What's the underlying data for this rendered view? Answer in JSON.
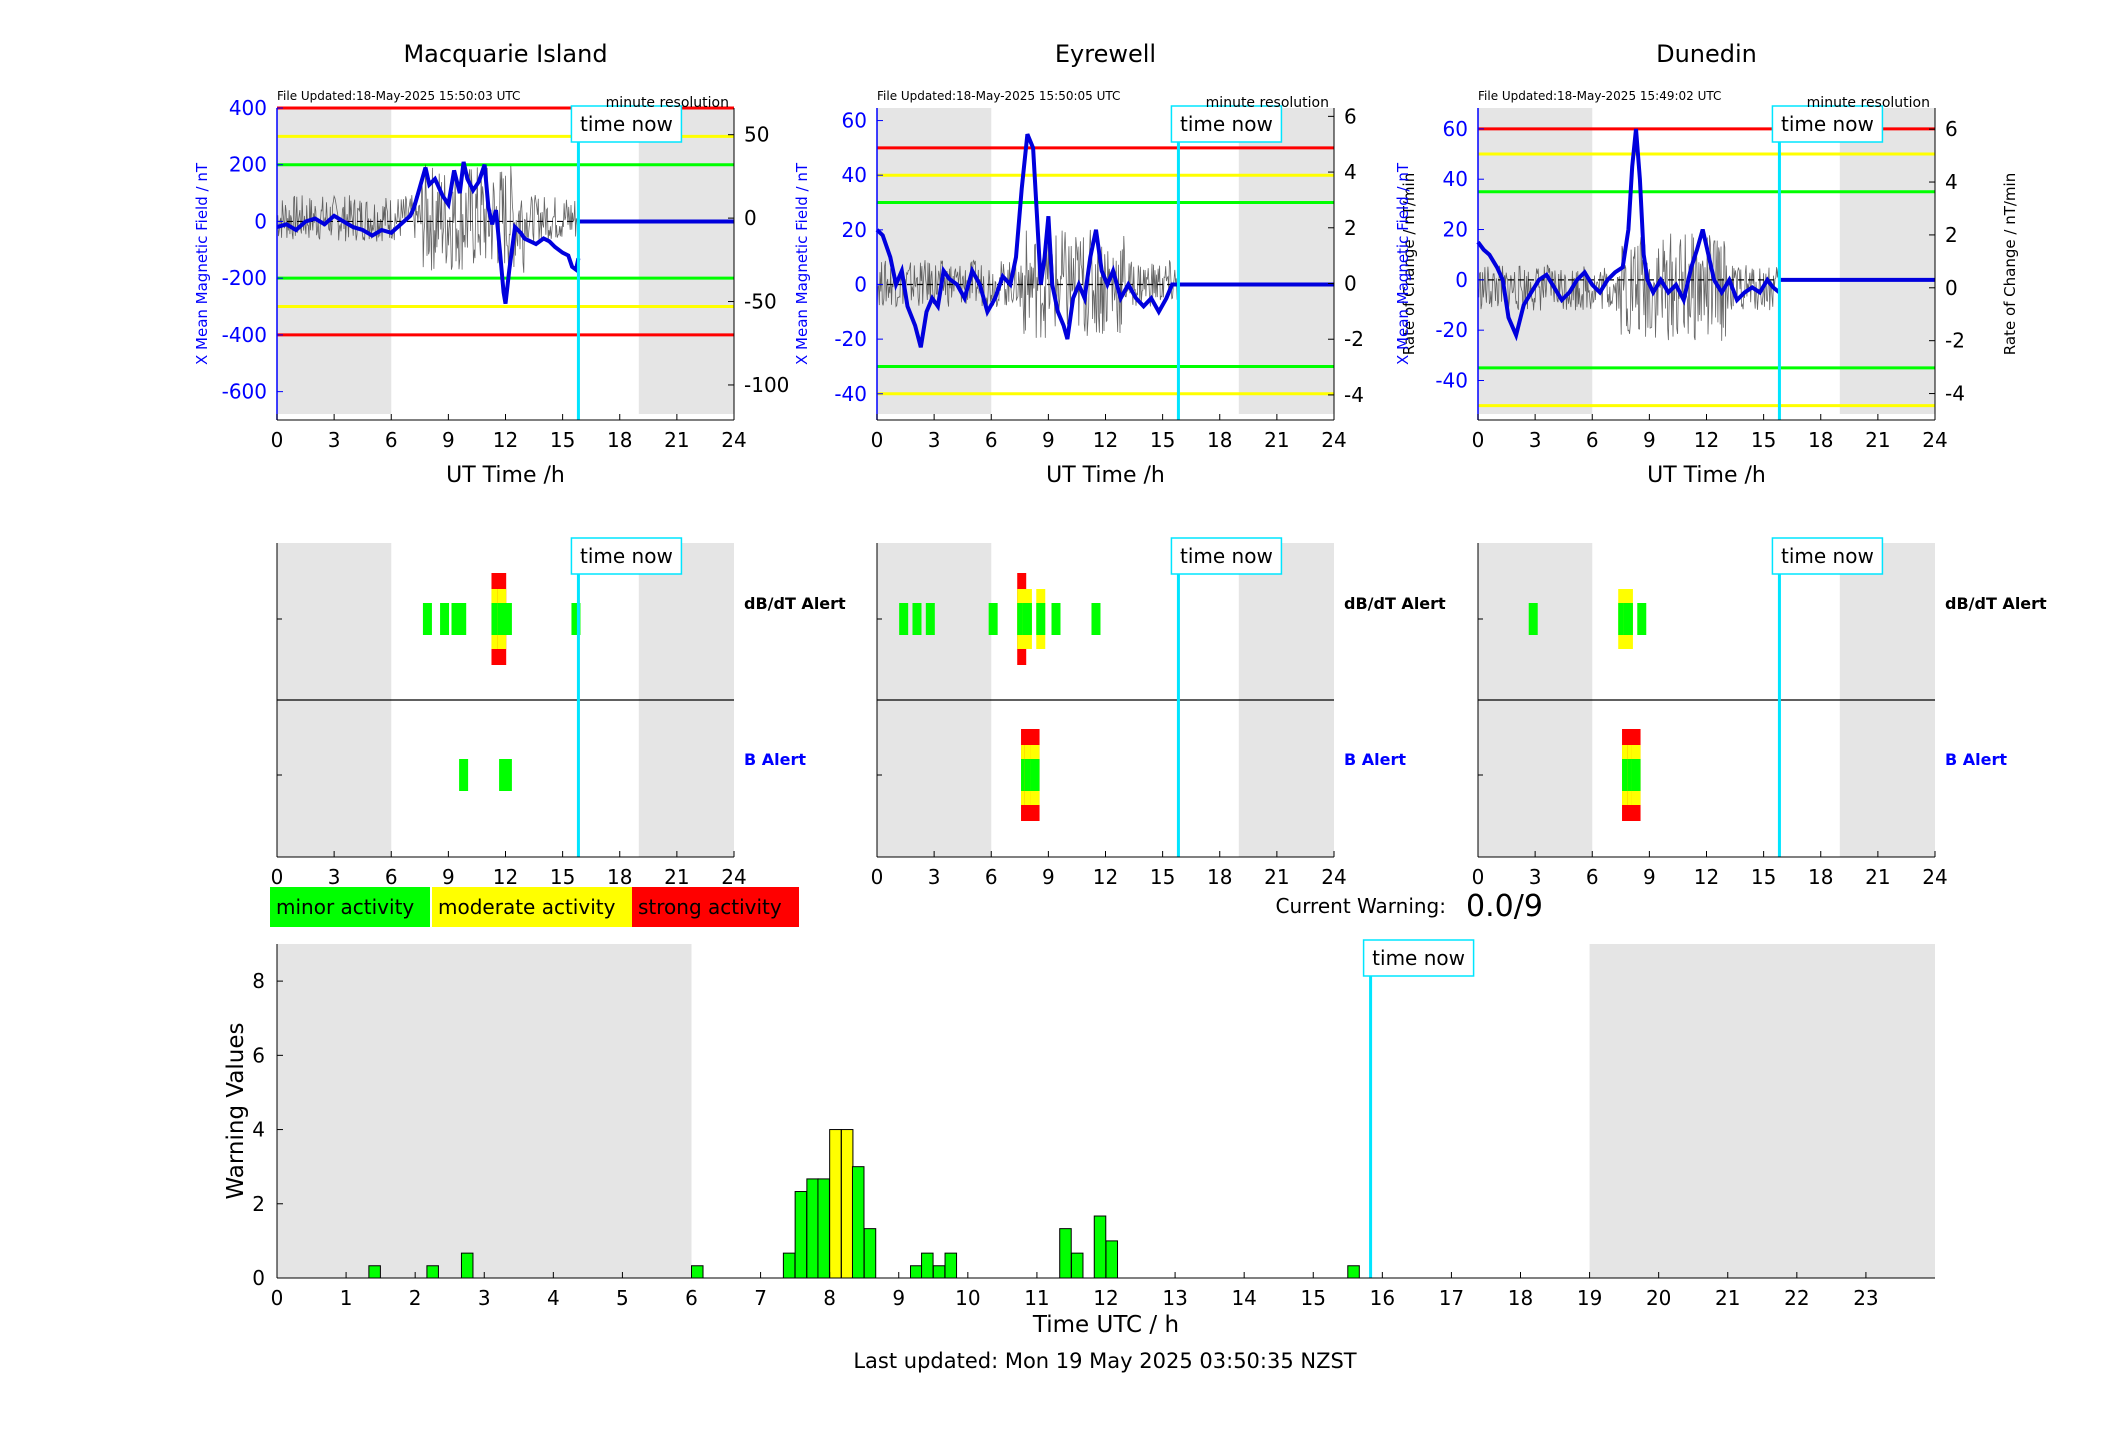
{
  "colors": {
    "background_band": "#e5e5e5",
    "minor": "#00ff00",
    "moderate": "#ffff00",
    "strong": "#ff0000",
    "time_now": "#00e5ff",
    "field_line": "#0000dd",
    "rate_line": "#333333",
    "left_axis": "#0000ff"
  },
  "labels": {
    "time_now": "time now",
    "minute_resolution": "minute resolution",
    "x_axis_top": "UT Time /h",
    "y_left_top": "X Mean Magnetic Field / nT",
    "y_right_top": "Rate of Change / nT/min",
    "dbdt_alert": "dB/dT Alert",
    "b_alert": "B Alert",
    "legend_minor": "minor activity",
    "legend_moderate": "moderate activity",
    "legend_strong": "strong activity",
    "current_warning_label": "Current Warning:",
    "current_warning_value": "0.0/9",
    "bottom_xlabel": "Time UTC / h",
    "bottom_ylabel": "Warning Values",
    "last_updated": "Last updated: Mon 19 May 2025 03:50:35 NZST"
  },
  "time_now_hour": 15.83,
  "night_bands_hours": [
    [
      0,
      6
    ],
    [
      19,
      24
    ]
  ],
  "chart_data": [
    {
      "type": "line",
      "title": "Macquarie Island",
      "file_updated": "File Updated:18-May-2025 15:50:03 UTC",
      "xlabel": "UT Time /h",
      "ylabel": "X Mean Magnetic Field / nT",
      "y2label": "",
      "xlim": [
        0,
        24
      ],
      "xticks": [
        0,
        3,
        6,
        9,
        12,
        15,
        18,
        21,
        24
      ],
      "ylim": [
        -700,
        400
      ],
      "yticks": [
        400,
        200,
        0,
        -200,
        -400,
        -600
      ],
      "y2lim": [
        -121,
        66
      ],
      "y2ticks": [
        50,
        0,
        -50,
        -100
      ],
      "thresholds": [
        {
          "value": 400,
          "level": "strong"
        },
        {
          "value": 300,
          "level": "moderate"
        },
        {
          "value": 200,
          "level": "minor"
        },
        {
          "value": -200,
          "level": "minor"
        },
        {
          "value": -300,
          "level": "moderate"
        },
        {
          "value": -400,
          "level": "strong"
        }
      ],
      "series": [
        {
          "x": [
            0,
            0.5,
            1,
            1.5,
            2,
            2.5,
            3,
            3.5,
            4,
            4.5,
            5,
            5.5,
            6,
            6.5,
            7,
            7.2,
            7.5,
            7.8,
            8,
            8.3,
            8.7,
            9,
            9.3,
            9.6,
            9.8,
            10,
            10.3,
            10.6,
            10.9,
            11.1,
            11.3,
            11.5,
            11.7,
            11.9,
            12,
            12.2,
            12.5,
            12.8,
            13,
            13.3,
            13.6,
            14,
            14.3,
            14.6,
            15,
            15.3,
            15.5,
            15.7,
            15.83
          ],
          "values": [
            -20,
            -10,
            -30,
            0,
            10,
            -10,
            20,
            0,
            -20,
            -30,
            -50,
            -30,
            -40,
            -10,
            20,
            50,
            120,
            190,
            130,
            150,
            90,
            60,
            180,
            100,
            210,
            150,
            110,
            140,
            200,
            50,
            -10,
            40,
            -100,
            -250,
            -290,
            -170,
            -20,
            -40,
            -60,
            -70,
            -80,
            -60,
            -70,
            -90,
            -110,
            -120,
            -160,
            -170,
            -130
          ]
        }
      ]
    },
    {
      "type": "line",
      "title": "Eyrewell",
      "file_updated": "File Updated:18-May-2025 15:50:05 UTC",
      "xlabel": "UT Time /h",
      "ylabel": "X Mean Magnetic Field / nT",
      "y2label": "Rate of Change / nT/min",
      "xlim": [
        0,
        24
      ],
      "xticks": [
        0,
        3,
        6,
        9,
        12,
        15,
        18,
        21,
        24
      ],
      "ylim": [
        -49.6,
        64.6
      ],
      "yticks": [
        60,
        40,
        20,
        0,
        -20,
        -40
      ],
      "y2lim": [
        -4.9,
        6.3
      ],
      "y2ticks": [
        6,
        4,
        2,
        0,
        -2,
        -4
      ],
      "thresholds": [
        {
          "value": 50,
          "level": "strong"
        },
        {
          "value": 40,
          "level": "moderate"
        },
        {
          "value": 30,
          "level": "minor"
        },
        {
          "value": -30,
          "level": "minor"
        },
        {
          "value": -40,
          "level": "moderate"
        }
      ],
      "series": [
        {
          "x": [
            0,
            0.3,
            0.7,
            1,
            1.3,
            1.6,
            2,
            2.3,
            2.6,
            2.9,
            3.2,
            3.5,
            3.8,
            4.2,
            4.6,
            5,
            5.4,
            5.8,
            6.2,
            6.6,
            7,
            7.3,
            7.6,
            7.9,
            8.2,
            8.4,
            8.6,
            8.8,
            9,
            9.2,
            9.5,
            9.8,
            10,
            10.3,
            10.6,
            10.9,
            11.2,
            11.5,
            11.8,
            12.1,
            12.4,
            12.8,
            13.2,
            13.6,
            14,
            14.4,
            14.8,
            15.2,
            15.5,
            15.83
          ],
          "values": [
            20,
            18,
            10,
            0,
            5,
            -8,
            -15,
            -23,
            -10,
            -5,
            -8,
            5,
            2,
            0,
            -5,
            5,
            0,
            -10,
            -5,
            3,
            0,
            10,
            35,
            55,
            50,
            25,
            0,
            10,
            25,
            0,
            -10,
            -15,
            -20,
            -5,
            0,
            -5,
            10,
            20,
            5,
            0,
            5,
            -5,
            0,
            -5,
            -8,
            -5,
            -10,
            -5,
            0,
            0
          ]
        }
      ]
    },
    {
      "type": "line",
      "title": "Dunedin",
      "file_updated": "File Updated:18-May-2025 15:49:02 UTC",
      "xlabel": "UT Time /h",
      "ylabel": "X Mean Magnetic Field / nT",
      "y2label": "Rate of Change / nT/min",
      "xlim": [
        0,
        24
      ],
      "xticks": [
        0,
        3,
        6,
        9,
        12,
        15,
        18,
        21,
        24
      ],
      "ylim": [
        -55.7,
        68.3
      ],
      "yticks": [
        60,
        40,
        20,
        0,
        -20,
        -40
      ],
      "y2lim": [
        -5.0,
        6.8
      ],
      "y2ticks": [
        6,
        4,
        2,
        0,
        -2,
        -4
      ],
      "thresholds": [
        {
          "value": 60,
          "level": "strong"
        },
        {
          "value": 50,
          "level": "moderate"
        },
        {
          "value": 35,
          "level": "minor"
        },
        {
          "value": -35,
          "level": "minor"
        },
        {
          "value": -50,
          "level": "moderate"
        }
      ],
      "series": [
        {
          "x": [
            0,
            0.3,
            0.6,
            1,
            1.3,
            1.6,
            2,
            2.4,
            2.8,
            3.2,
            3.6,
            4,
            4.4,
            4.8,
            5.2,
            5.6,
            6,
            6.4,
            6.8,
            7.2,
            7.6,
            7.9,
            8.1,
            8.3,
            8.5,
            8.7,
            8.9,
            9.2,
            9.6,
            10,
            10.4,
            10.8,
            11.2,
            11.5,
            11.8,
            12.1,
            12.4,
            12.8,
            13.2,
            13.6,
            14,
            14.4,
            14.8,
            15.2,
            15.5,
            15.83
          ],
          "values": [
            15,
            12,
            10,
            5,
            0,
            -15,
            -22,
            -10,
            -5,
            0,
            2,
            -3,
            -8,
            -5,
            0,
            3,
            -2,
            -5,
            0,
            3,
            5,
            20,
            45,
            60,
            40,
            10,
            0,
            -5,
            0,
            -5,
            -2,
            -8,
            5,
            12,
            20,
            10,
            0,
            -5,
            0,
            -8,
            -5,
            -3,
            -5,
            0,
            -3,
            -5
          ]
        }
      ]
    }
  ],
  "alert_panels": [
    {
      "station": "Macquarie Island",
      "xticks": [
        0,
        3,
        6,
        9,
        12,
        15,
        18,
        21,
        24
      ],
      "dbdt": [
        {
          "t": 7.9,
          "levels": [
            "minor"
          ]
        },
        {
          "t": 8.8,
          "levels": [
            "minor"
          ]
        },
        {
          "t": 9.4,
          "levels": [
            "minor"
          ]
        },
        {
          "t": 9.7,
          "levels": [
            "minor"
          ]
        },
        {
          "t": 11.5,
          "levels": [
            "minor",
            "moderate",
            "strong"
          ]
        },
        {
          "t": 11.8,
          "levels": [
            "minor",
            "moderate",
            "strong"
          ]
        },
        {
          "t": 12.1,
          "levels": [
            "minor"
          ]
        },
        {
          "t": 15.7,
          "levels": [
            "minor"
          ]
        }
      ],
      "b": [
        {
          "t": 9.8,
          "levels": [
            "minor"
          ]
        },
        {
          "t": 11.9,
          "levels": [
            "minor"
          ]
        },
        {
          "t": 12.1,
          "levels": [
            "minor"
          ]
        }
      ]
    },
    {
      "station": "Eyrewell",
      "xticks": [
        0,
        3,
        6,
        9,
        12,
        15,
        18,
        21,
        24
      ],
      "dbdt": [
        {
          "t": 1.4,
          "levels": [
            "minor"
          ]
        },
        {
          "t": 2.1,
          "levels": [
            "minor"
          ]
        },
        {
          "t": 2.8,
          "levels": [
            "minor"
          ]
        },
        {
          "t": 6.1,
          "levels": [
            "minor"
          ]
        },
        {
          "t": 7.6,
          "levels": [
            "minor",
            "moderate",
            "strong"
          ]
        },
        {
          "t": 7.9,
          "levels": [
            "minor",
            "moderate"
          ]
        },
        {
          "t": 8.6,
          "levels": [
            "minor",
            "moderate"
          ]
        },
        {
          "t": 9.4,
          "levels": [
            "minor"
          ]
        },
        {
          "t": 11.5,
          "levels": [
            "minor"
          ]
        }
      ],
      "b": [
        {
          "t": 7.8,
          "levels": [
            "minor",
            "moderate",
            "strong"
          ]
        },
        {
          "t": 8.0,
          "levels": [
            "minor",
            "moderate",
            "strong"
          ]
        },
        {
          "t": 8.3,
          "levels": [
            "minor",
            "moderate",
            "strong"
          ]
        }
      ]
    },
    {
      "station": "Dunedin",
      "xticks": [
        0,
        3,
        6,
        9,
        12,
        15,
        18,
        21,
        24
      ],
      "dbdt": [
        {
          "t": 2.9,
          "levels": [
            "minor"
          ]
        },
        {
          "t": 7.6,
          "levels": [
            "minor",
            "moderate"
          ]
        },
        {
          "t": 7.9,
          "levels": [
            "minor",
            "moderate"
          ]
        },
        {
          "t": 8.6,
          "levels": [
            "minor"
          ]
        }
      ],
      "b": [
        {
          "t": 7.8,
          "levels": [
            "minor",
            "moderate",
            "strong"
          ]
        },
        {
          "t": 8.1,
          "levels": [
            "minor",
            "moderate",
            "strong"
          ]
        },
        {
          "t": 8.3,
          "levels": [
            "minor",
            "moderate",
            "strong"
          ]
        }
      ]
    }
  ],
  "warning_chart": {
    "type": "bar",
    "xlim": [
      0,
      24
    ],
    "xticks": [
      0,
      1,
      2,
      3,
      4,
      5,
      6,
      7,
      8,
      9,
      10,
      11,
      12,
      13,
      14,
      15,
      16,
      17,
      18,
      19,
      20,
      21,
      22,
      23
    ],
    "ylim": [
      0,
      9
    ],
    "yticks": [
      0,
      2,
      4,
      6,
      8
    ],
    "bin_width_h": 0.1667,
    "bars": [
      {
        "t": 1.33,
        "v": 0.33,
        "level": "minor"
      },
      {
        "t": 2.17,
        "v": 0.33,
        "level": "minor"
      },
      {
        "t": 2.67,
        "v": 0.67,
        "level": "minor"
      },
      {
        "t": 6.0,
        "v": 0.33,
        "level": "minor"
      },
      {
        "t": 7.33,
        "v": 0.67,
        "level": "minor"
      },
      {
        "t": 7.5,
        "v": 2.33,
        "level": "minor"
      },
      {
        "t": 7.67,
        "v": 2.67,
        "level": "minor"
      },
      {
        "t": 7.83,
        "v": 2.67,
        "level": "minor"
      },
      {
        "t": 8.0,
        "v": 4.0,
        "level": "moderate"
      },
      {
        "t": 8.17,
        "v": 4.0,
        "level": "moderate"
      },
      {
        "t": 8.33,
        "v": 3.0,
        "level": "minor"
      },
      {
        "t": 8.5,
        "v": 1.33,
        "level": "minor"
      },
      {
        "t": 9.17,
        "v": 0.33,
        "level": "minor"
      },
      {
        "t": 9.33,
        "v": 0.67,
        "level": "minor"
      },
      {
        "t": 9.5,
        "v": 0.33,
        "level": "minor"
      },
      {
        "t": 9.67,
        "v": 0.67,
        "level": "minor"
      },
      {
        "t": 11.33,
        "v": 1.33,
        "level": "minor"
      },
      {
        "t": 11.5,
        "v": 0.67,
        "level": "minor"
      },
      {
        "t": 11.83,
        "v": 1.67,
        "level": "minor"
      },
      {
        "t": 12.0,
        "v": 1.0,
        "level": "minor"
      },
      {
        "t": 15.5,
        "v": 0.33,
        "level": "minor"
      }
    ]
  }
}
